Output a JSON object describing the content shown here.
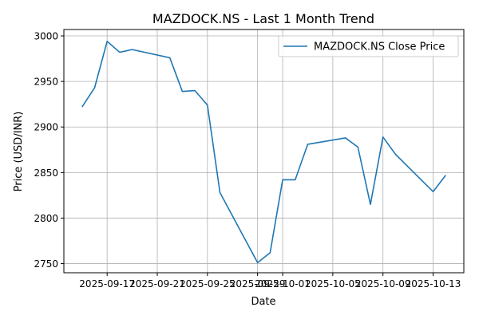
{
  "chart_data": {
    "type": "line",
    "title": "MAZDOCK.NS - Last 1 Month Trend",
    "xlabel": "Date",
    "ylabel": "Price (USD/INR)",
    "ylim": [
      2740,
      3007
    ],
    "yticks": [
      2750,
      2800,
      2850,
      2900,
      2950,
      3000
    ],
    "xticks": [
      "2025-09-17",
      "2025-09-21",
      "2025-09-25",
      "2025-09-29",
      "2025-10-01",
      "2025-10-05",
      "2025-10-09",
      "2025-10-13"
    ],
    "grid": true,
    "legend": "top-right",
    "line_color": "#1f77b4",
    "series": [
      {
        "name": "MAZDOCK.NS Close Price",
        "x": [
          "2025-09-15",
          "2025-09-16",
          "2025-09-17",
          "2025-09-18",
          "2025-09-19",
          "2025-09-22",
          "2025-09-23",
          "2025-09-24",
          "2025-09-25",
          "2025-09-26",
          "2025-09-29",
          "2025-09-30",
          "2025-10-01",
          "2025-10-02",
          "2025-10-03",
          "2025-10-06",
          "2025-10-07",
          "2025-10-08",
          "2025-10-09",
          "2025-10-10",
          "2025-10-13",
          "2025-10-14"
        ],
        "values": [
          2922,
          2943,
          2994,
          2982,
          2985,
          2976,
          2939,
          2940,
          2924,
          2828,
          2751,
          2762,
          2842,
          2842,
          2881,
          2888,
          2878,
          2815,
          2889,
          2870,
          2829,
          2847
        ]
      }
    ]
  }
}
